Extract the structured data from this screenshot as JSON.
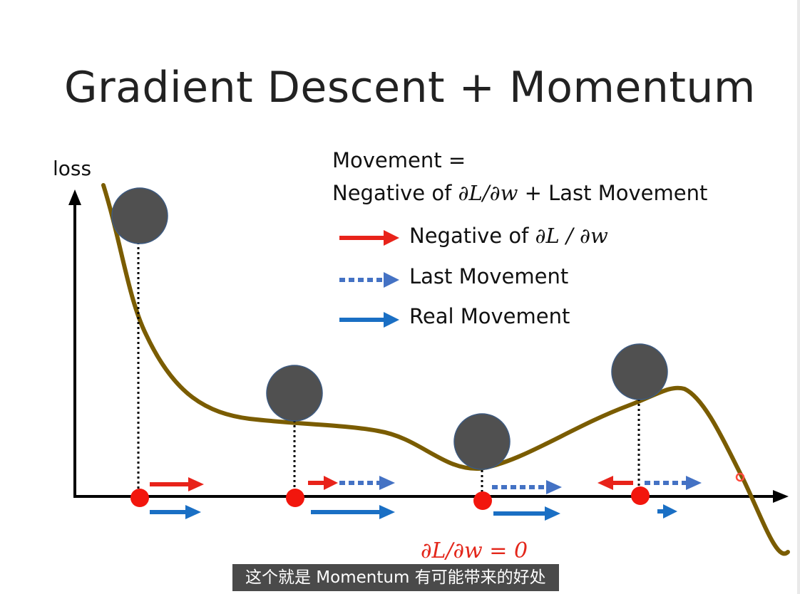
{
  "slide": {
    "title": "Gradient Descent + Momentum",
    "y_axis_label": "loss",
    "equation": {
      "line1": "Movement =",
      "line2_prefix": "Negative of ",
      "line2_math": "∂L/∂w",
      "line2_suffix": " + Last Movement"
    },
    "legend": {
      "negative_gradient_prefix": "Negative of ",
      "negative_gradient_math": "∂L / ∂w",
      "last_movement": "Last Movement",
      "real_movement": "Real Movement"
    },
    "zero_gradient_label": "∂L/∂w = 0"
  },
  "subtitle": "这个就是 Momentum 有可能带来的好处",
  "colors": {
    "curve": "#7a5c00",
    "ball": "#505050",
    "ball_outline": "#3d5a80",
    "red_arrow": "#e8231a",
    "blue_dotted_arrow": "#4472c4",
    "blue_solid_arrow": "#1a6fc4",
    "point": "#f2160d",
    "zero_label": "#e3261a"
  }
}
